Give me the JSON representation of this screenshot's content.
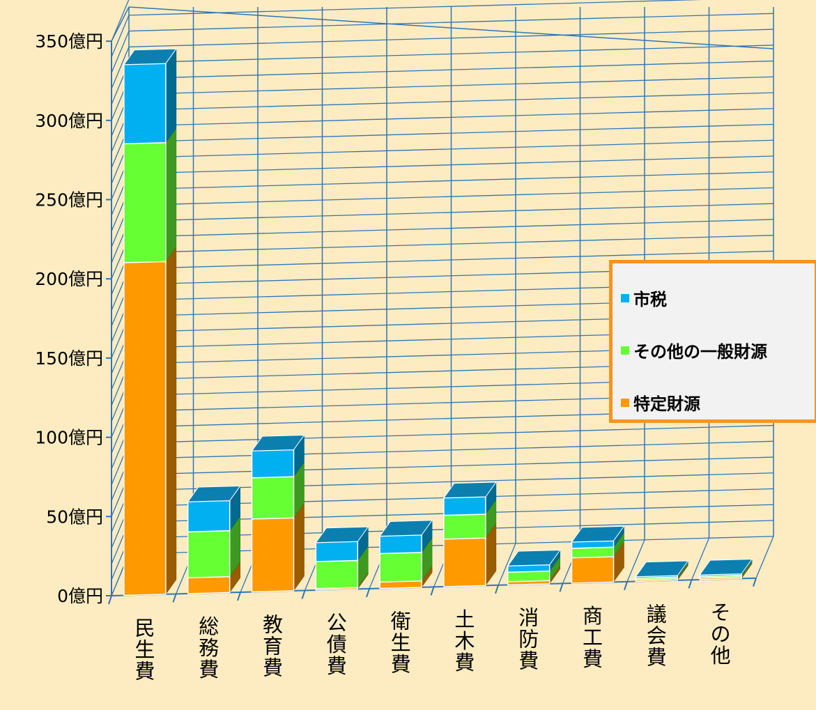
{
  "chart_data": {
    "type": "bar",
    "stacked": true,
    "three_d": true,
    "categories": [
      "民生費",
      "総務費",
      "教育費",
      "公債費",
      "衛生費",
      "土木費",
      "消防費",
      "商工費",
      "議会費",
      "その他"
    ],
    "series": [
      {
        "name": "特定財源",
        "color": "#FF9900",
        "values": [
          210,
          10,
          46,
          1,
          4,
          30,
          2,
          16,
          1,
          1
        ]
      },
      {
        "name": "その他の一般財源",
        "color": "#66FF33",
        "values": [
          75,
          29,
          26,
          17,
          18,
          15,
          6,
          6,
          1,
          1
        ]
      },
      {
        "name": "市税",
        "color": "#00B0F0",
        "values": [
          50,
          19,
          17,
          12,
          11,
          11,
          4,
          4,
          1,
          1
        ]
      }
    ],
    "y_ticks": [
      "0億円",
      "50億円",
      "100億円",
      "150億円",
      "200億円",
      "250億円",
      "300億円",
      "350億円"
    ],
    "ylim": [
      0,
      350
    ],
    "grid": true,
    "legend_position": "right"
  }
}
